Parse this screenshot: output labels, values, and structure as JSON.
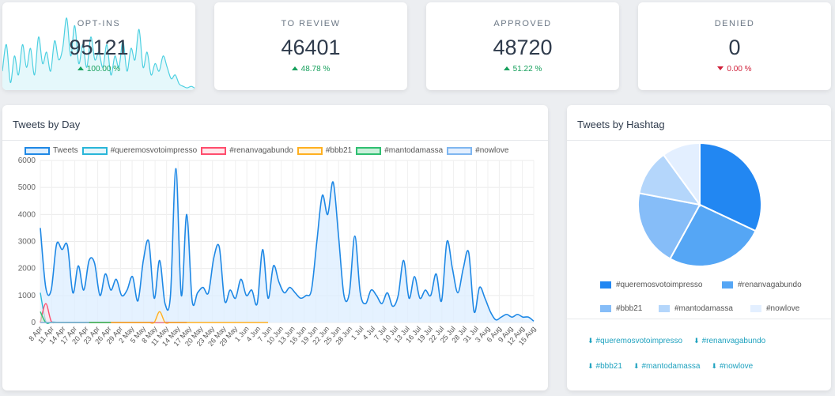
{
  "stats": [
    {
      "label": "OPT-INS",
      "value": "95121",
      "change": "100.00 %",
      "direction": "up"
    },
    {
      "label": "TO REVIEW",
      "value": "46401",
      "change": "48.78 %",
      "direction": "up"
    },
    {
      "label": "APPROVED",
      "value": "48720",
      "change": "51.22 %",
      "direction": "up"
    },
    {
      "label": "DENIED",
      "value": "0",
      "change": "0.00 %",
      "direction": "down"
    }
  ],
  "colors": {
    "accent": "#1e88e5",
    "teal": "#4dd0e1",
    "up": "#16a05c",
    "down": "#d0203a",
    "link": "#1fa2bf"
  },
  "tweets_by_day": {
    "title": "Tweets by Day",
    "legend": [
      {
        "name": "Tweets",
        "border": "#1e88e5",
        "fill": "#dceeff"
      },
      {
        "name": "#queremosvotoimpresso",
        "border": "#29b6d9",
        "fill": "#e6f6fb"
      },
      {
        "name": "#renanvagabundo",
        "border": "#ff4d6d",
        "fill": "#ffe6ea"
      },
      {
        "name": "#bbb21",
        "border": "#ffb020",
        "fill": "#fff4df"
      },
      {
        "name": "#mantodamassa",
        "border": "#2fbf71",
        "fill": "#c9f0da"
      },
      {
        "name": "#nowlove",
        "border": "#7fb6f0",
        "fill": "#e3efff"
      }
    ]
  },
  "tweets_by_hashtag": {
    "title": "Tweets by Hashtag",
    "downloads": [
      "#queremosvotoimpresso",
      "#renanvagabundo",
      "#bbb21",
      "#mantodamassa",
      "#nowlove"
    ]
  },
  "chart_data": [
    {
      "type": "area",
      "title": "Tweets by Day",
      "ylim": [
        0,
        6000
      ],
      "yticks": [
        0,
        1000,
        2000,
        3000,
        4000,
        5000,
        6000
      ],
      "xticks": [
        "8 Apr",
        "11 Apr",
        "14 Apr",
        "17 Apr",
        "20 Apr",
        "23 Apr",
        "26 Apr",
        "29 Apr",
        "2 May",
        "5 May",
        "8 May",
        "11 May",
        "14 May",
        "17 May",
        "20 May",
        "23 May",
        "26 May",
        "29 May",
        "1 Jun",
        "4 Jun",
        "7 Jun",
        "10 Jun",
        "13 Jun",
        "16 Jun",
        "19 Jun",
        "22 Jun",
        "25 Jun",
        "28 Jun",
        "1 Jul",
        "4 Jul",
        "7 Jul",
        "10 Jul",
        "13 Jul",
        "16 Jul",
        "19 Jul",
        "22 Jul",
        "25 Jul",
        "28 Jul",
        "31 Jul",
        "3 Aug",
        "6 Aug",
        "9 Aug",
        "12 Aug",
        "15 Aug"
      ],
      "grid": true,
      "legend_position": "top",
      "series": [
        {
          "name": "Tweets",
          "values": [
            3500,
            1300,
            1200,
            2900,
            2700,
            2850,
            1100,
            2100,
            1200,
            2300,
            2200,
            1000,
            1800,
            1200,
            1600,
            1000,
            1200,
            1700,
            800,
            2300,
            3000,
            900,
            2300,
            700,
            1000,
            5700,
            1000,
            4000,
            800,
            1100,
            1300,
            1100,
            2400,
            2800,
            800,
            1200,
            900,
            1600,
            1000,
            1200,
            700,
            2700,
            900,
            2100,
            1500,
            1100,
            1300,
            1100,
            900,
            1000,
            1200,
            3000,
            4700,
            4000,
            5200,
            3200,
            1000,
            1100,
            3200,
            1100,
            700,
            1200,
            1000,
            700,
            1100,
            600,
            1000,
            2300,
            900,
            1700,
            900,
            1200,
            1000,
            1800,
            800,
            3000,
            2000,
            1100,
            2000,
            2600,
            400,
            1300,
            900,
            400,
            100,
            200,
            300,
            200,
            300,
            200,
            200,
            50
          ]
        },
        {
          "name": "#queremosvotoimpresso",
          "values": [
            1100,
            50,
            20,
            10,
            0,
            0,
            0,
            0,
            0,
            0,
            0,
            0,
            0,
            0,
            0,
            0,
            0,
            0,
            0,
            0,
            0,
            0,
            0,
            0,
            0,
            0,
            0,
            0
          ]
        },
        {
          "name": "#renanvagabundo",
          "values": [
            0,
            700,
            50,
            10,
            0,
            0,
            0,
            0,
            0,
            0,
            0,
            0,
            0,
            0,
            0,
            0,
            0,
            0,
            0,
            0,
            0,
            0,
            0,
            0,
            0,
            0,
            0,
            0
          ]
        },
        {
          "name": "#bbb21",
          "values": [
            0,
            0,
            0,
            0,
            0,
            0,
            0,
            0,
            0,
            0,
            0,
            0,
            0,
            0,
            0,
            0,
            0,
            0,
            0,
            0,
            0,
            0,
            400,
            0,
            0,
            0,
            0,
            0,
            0,
            0,
            0,
            0,
            0,
            0,
            0,
            0,
            0,
            0,
            0,
            0,
            0,
            0,
            0
          ]
        },
        {
          "name": "#mantodamassa",
          "values": [
            400,
            0,
            0,
            0,
            0,
            0,
            0,
            0,
            0,
            0,
            0,
            0,
            0,
            0
          ]
        },
        {
          "name": "#nowlove",
          "values": [
            0,
            0,
            0,
            0,
            0,
            0,
            0,
            0,
            0,
            0
          ]
        }
      ]
    },
    {
      "type": "pie",
      "title": "Tweets by Hashtag",
      "labels": [
        "#queremosvotoimpresso",
        "#renanvagabundo",
        "#bbb21",
        "#mantodamassa",
        "#nowlove"
      ],
      "values": [
        32,
        26,
        20,
        12,
        10
      ],
      "colors": [
        "#2287f2",
        "#55a6f5",
        "#86bdf8",
        "#b4d6fb",
        "#e3efff"
      ]
    }
  ],
  "opt_ins_sparkline": [
    25,
    60,
    10,
    45,
    20,
    60,
    30,
    55,
    20,
    70,
    35,
    50,
    25,
    65,
    40,
    55,
    95,
    45,
    85,
    35,
    60,
    30,
    70,
    40,
    50,
    30,
    60,
    20,
    45,
    30,
    65,
    25,
    55,
    40,
    80,
    30,
    50,
    20,
    35,
    25,
    45,
    30,
    15,
    20,
    8,
    5,
    3,
    5,
    2
  ]
}
